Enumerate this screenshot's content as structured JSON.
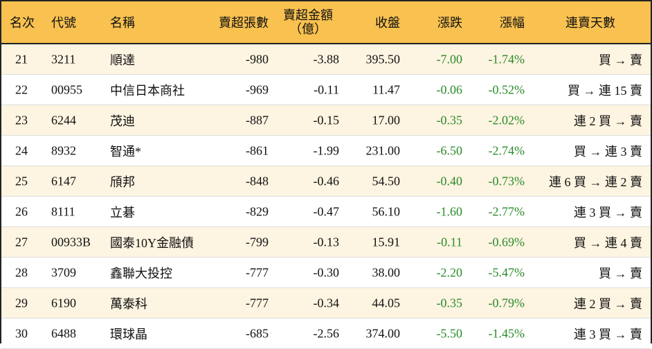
{
  "header": {
    "rank": "名次",
    "code": "代號",
    "name": "名稱",
    "shares": "賣超張數",
    "amount": "賣超金額",
    "amount_unit": "（億）",
    "close": "收盤",
    "change": "漲跌",
    "pct": "漲幅",
    "streak": "連賣天數"
  },
  "colors": {
    "header_bg": "#f8c150",
    "odd_row": "#fdf4e1",
    "down": "#2a8a2a"
  },
  "rows": [
    {
      "rank": "21",
      "code": "3211",
      "name": "順達",
      "shares": "-980",
      "amount": "-3.88",
      "close": "395.50",
      "change": "-7.00",
      "pct": "-1.74%",
      "streak": "買 → 賣"
    },
    {
      "rank": "22",
      "code": "00955",
      "name": "中信日本商社",
      "shares": "-969",
      "amount": "-0.11",
      "close": "11.47",
      "change": "-0.06",
      "pct": "-0.52%",
      "streak": "買 → 連 15 賣"
    },
    {
      "rank": "23",
      "code": "6244",
      "name": "茂迪",
      "shares": "-887",
      "amount": "-0.15",
      "close": "17.00",
      "change": "-0.35",
      "pct": "-2.02%",
      "streak": "連 2 買 → 賣"
    },
    {
      "rank": "24",
      "code": "8932",
      "name": "智通*",
      "shares": "-861",
      "amount": "-1.99",
      "close": "231.00",
      "change": "-6.50",
      "pct": "-2.74%",
      "streak": "買 → 連 3 賣"
    },
    {
      "rank": "25",
      "code": "6147",
      "name": "頎邦",
      "shares": "-848",
      "amount": "-0.46",
      "close": "54.50",
      "change": "-0.40",
      "pct": "-0.73%",
      "streak": "連 6 買 → 連 2 賣"
    },
    {
      "rank": "26",
      "code": "8111",
      "name": "立碁",
      "shares": "-829",
      "amount": "-0.47",
      "close": "56.10",
      "change": "-1.60",
      "pct": "-2.77%",
      "streak": "連 3 買 → 賣"
    },
    {
      "rank": "27",
      "code": "00933B",
      "name": "國泰10Y金融債",
      "shares": "-799",
      "amount": "-0.13",
      "close": "15.91",
      "change": "-0.11",
      "pct": "-0.69%",
      "streak": "買 → 連 4 賣"
    },
    {
      "rank": "28",
      "code": "3709",
      "name": "鑫聯大投控",
      "shares": "-777",
      "amount": "-0.30",
      "close": "38.00",
      "change": "-2.20",
      "pct": "-5.47%",
      "streak": "買 → 賣"
    },
    {
      "rank": "29",
      "code": "6190",
      "name": "萬泰科",
      "shares": "-777",
      "amount": "-0.34",
      "close": "44.05",
      "change": "-0.35",
      "pct": "-0.79%",
      "streak": "連 2 買 → 賣"
    },
    {
      "rank": "30",
      "code": "6488",
      "name": "環球晶",
      "shares": "-685",
      "amount": "-2.56",
      "close": "374.00",
      "change": "-5.50",
      "pct": "-1.45%",
      "streak": "連 3 買 → 賣"
    }
  ]
}
